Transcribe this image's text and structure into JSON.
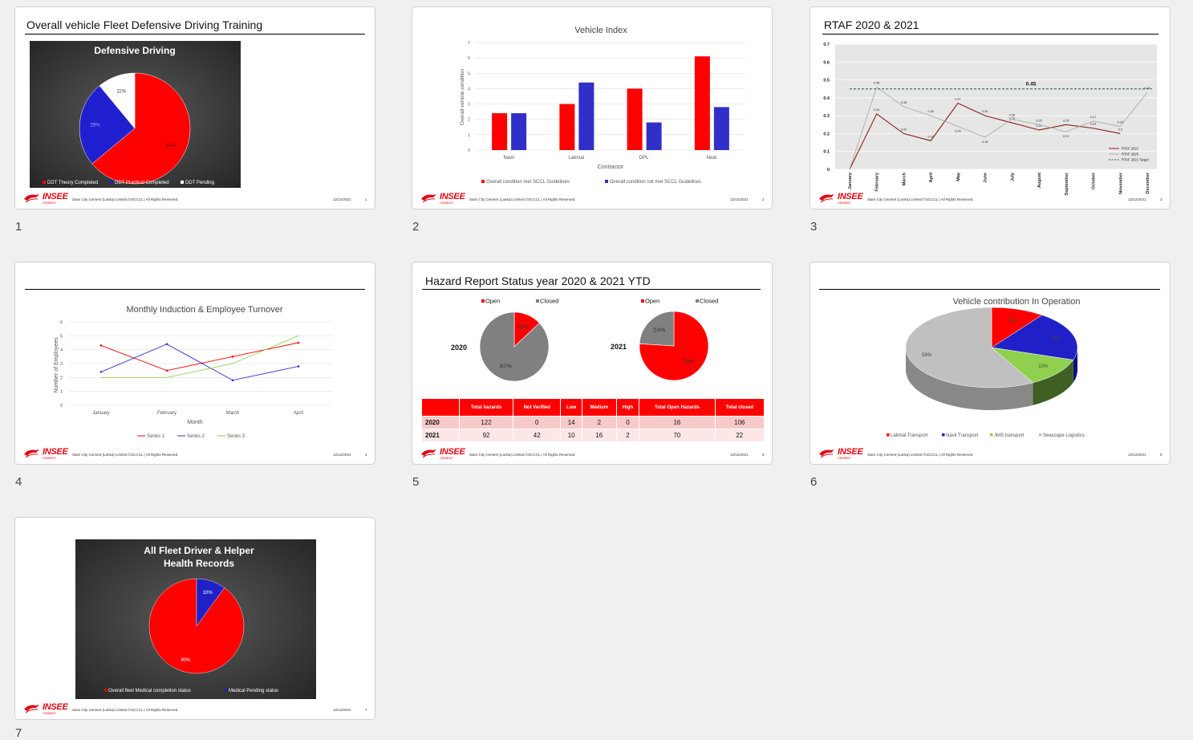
{
  "footer": {
    "copyright": "Siam City Cement (Lanka) Limited ©SCCCL | All Rights Reserved.",
    "date": "12/12/2021",
    "logo": "INSEE",
    "logo_sub": "CEMENT"
  },
  "slides": [
    {
      "number": "1",
      "title": "Overall vehicle Fleet Defensive Driving Training",
      "page": "1"
    },
    {
      "number": "2",
      "title": "",
      "page": "2"
    },
    {
      "number": "3",
      "title": "RTAF 2020 & 2021",
      "page": "3"
    },
    {
      "number": "4",
      "title": "",
      "page": "4"
    },
    {
      "number": "5",
      "title": "Hazard Report Status year 2020 & 2021 YTD",
      "page": "5"
    },
    {
      "number": "6",
      "title": "",
      "page": "6"
    },
    {
      "number": "7",
      "title": "",
      "page": "7"
    }
  ],
  "hazard_table": {
    "headers": [
      "",
      "Total hazards",
      "Not Verified",
      "Low",
      "Medium",
      "High",
      "Total Open Hazards",
      "Total closed"
    ],
    "rows": [
      [
        "2020",
        "122",
        "0",
        "14",
        "2",
        "0",
        "16",
        "106"
      ],
      [
        "2021",
        "92",
        "42",
        "10",
        "16",
        "2",
        "70",
        "22"
      ]
    ]
  },
  "chart_data": [
    {
      "type": "pie",
      "title": "Defensive Driving",
      "labels": [
        "DDT Theory Completed",
        "DDT Practical Completed",
        "DDT Pending"
      ],
      "values": [
        64,
        25,
        11
      ],
      "value_labels": [
        "64%",
        "25%",
        "11%"
      ],
      "colors": [
        "#ff0000",
        "#2020d0",
        "#ffffff"
      ]
    },
    {
      "type": "bar",
      "title": "Vehicle Index",
      "categories": [
        "Navil",
        "Lakmal",
        "DPL",
        "Neat"
      ],
      "series": [
        {
          "name": "Overall condition met SCCL Guidelines",
          "values": [
            2.4,
            3,
            4,
            6.1
          ],
          "color": "#ff0000"
        },
        {
          "name": "Overall condition not met SCCL Guidelines",
          "values": [
            2.4,
            4.4,
            1.8,
            2.8
          ],
          "color": "#3030c8"
        }
      ],
      "xlabel": "Contractor",
      "ylabel": "Overall vehicle condition",
      "ylim": [
        0,
        7
      ],
      "yticks": [
        "0",
        "1",
        "2",
        "3",
        "4",
        "5",
        "6",
        "7"
      ]
    },
    {
      "type": "line",
      "title": "",
      "categories": [
        "January",
        "February",
        "March",
        "April",
        "May",
        "June",
        "July",
        "August",
        "September",
        "October",
        "November",
        "December"
      ],
      "series": [
        {
          "name": "RTAF 2021",
          "values": [
            0,
            0.31,
            0.2,
            0.16,
            0.37,
            0.3,
            0.26,
            0.22,
            0.25,
            0.23,
            0.2,
            null
          ],
          "labels": [
            "",
            "0.31",
            "0.20",
            "0.16",
            "0.37",
            "0.30",
            "0.26",
            "0.22",
            "0.25",
            "0.23",
            "0.2",
            ""
          ],
          "color": "#8b1a1a"
        },
        {
          "name": "RTAF 2020",
          "values": [
            0,
            0.46,
            0.35,
            0.3,
            0.24,
            0.18,
            0.28,
            0.25,
            0.21,
            0.27,
            0.24,
            0.43
          ],
          "labels": [
            "",
            "0.46",
            "0.35",
            "0.30",
            "0.24",
            "0.18",
            "0.28",
            "0.25",
            "0.21",
            "0.27",
            "0.24",
            "0.43"
          ],
          "color": "#a8a8a8"
        },
        {
          "name": "RTAF 2021 Target",
          "values": [
            0.45,
            0.45,
            0.45,
            0.45,
            0.45,
            0.45,
            0.45,
            0.45,
            0.45,
            0.45,
            0.45,
            0.45
          ],
          "color": "#1a6b2a"
        }
      ],
      "target_label": "0.45",
      "ylim": [
        0,
        0.7
      ],
      "yticks": [
        "0",
        "0.1",
        "0.2",
        "0.3",
        "0.4",
        "0.5",
        "0.6",
        "0.7"
      ]
    },
    {
      "type": "line",
      "title": "Monthly Induction & Employee Turnover",
      "categories": [
        "January",
        "February",
        "March",
        "April"
      ],
      "series": [
        {
          "name": "Series 1",
          "values": [
            4.3,
            2.5,
            3.5,
            4.5
          ],
          "color": "#ff0000"
        },
        {
          "name": "Series 2",
          "values": [
            2.4,
            4.4,
            1.8,
            2.8
          ],
          "color": "#3030c8"
        },
        {
          "name": "Series 3",
          "values": [
            2,
            2,
            3,
            5
          ],
          "color": "#8fd14f"
        }
      ],
      "xlabel": "Month",
      "ylabel": "Number of Employees",
      "ylim": [
        0,
        6
      ],
      "yticks": [
        "0",
        "1",
        "2",
        "3",
        "4",
        "5",
        "6"
      ]
    },
    {
      "type": "pie",
      "title": "2020",
      "labels": [
        "Open",
        "Closed"
      ],
      "values": [
        13,
        87
      ],
      "value_labels": [
        "13%",
        "87%"
      ],
      "colors": [
        "#ff0000",
        "#808080"
      ]
    },
    {
      "type": "pie",
      "title": "2021",
      "labels": [
        "Open",
        "Closed"
      ],
      "values": [
        76,
        24
      ],
      "value_labels": [
        "76%",
        "24%"
      ],
      "colors": [
        "#ff0000",
        "#808080"
      ]
    },
    {
      "type": "pie",
      "title": "Vehicle contribution In Operation",
      "labels": [
        "Lakmal Transport",
        "Navil Transport",
        "JMS transport",
        "Seascape Logistics"
      ],
      "values": [
        10,
        20,
        12,
        58
      ],
      "value_labels": [
        "10%",
        "20%",
        "12%",
        "58%"
      ],
      "colors": [
        "#ff0000",
        "#2020c8",
        "#8fd14f",
        "#c0c0c0"
      ]
    },
    {
      "type": "pie",
      "title": "All Fleet Driver & Helper Health Records",
      "labels": [
        "Overall fleet Medical completion status",
        "Medical Pending status"
      ],
      "values": [
        90,
        10
      ],
      "value_labels": [
        "90%",
        "10%"
      ],
      "colors": [
        "#ff0000",
        "#2020c8"
      ]
    }
  ]
}
